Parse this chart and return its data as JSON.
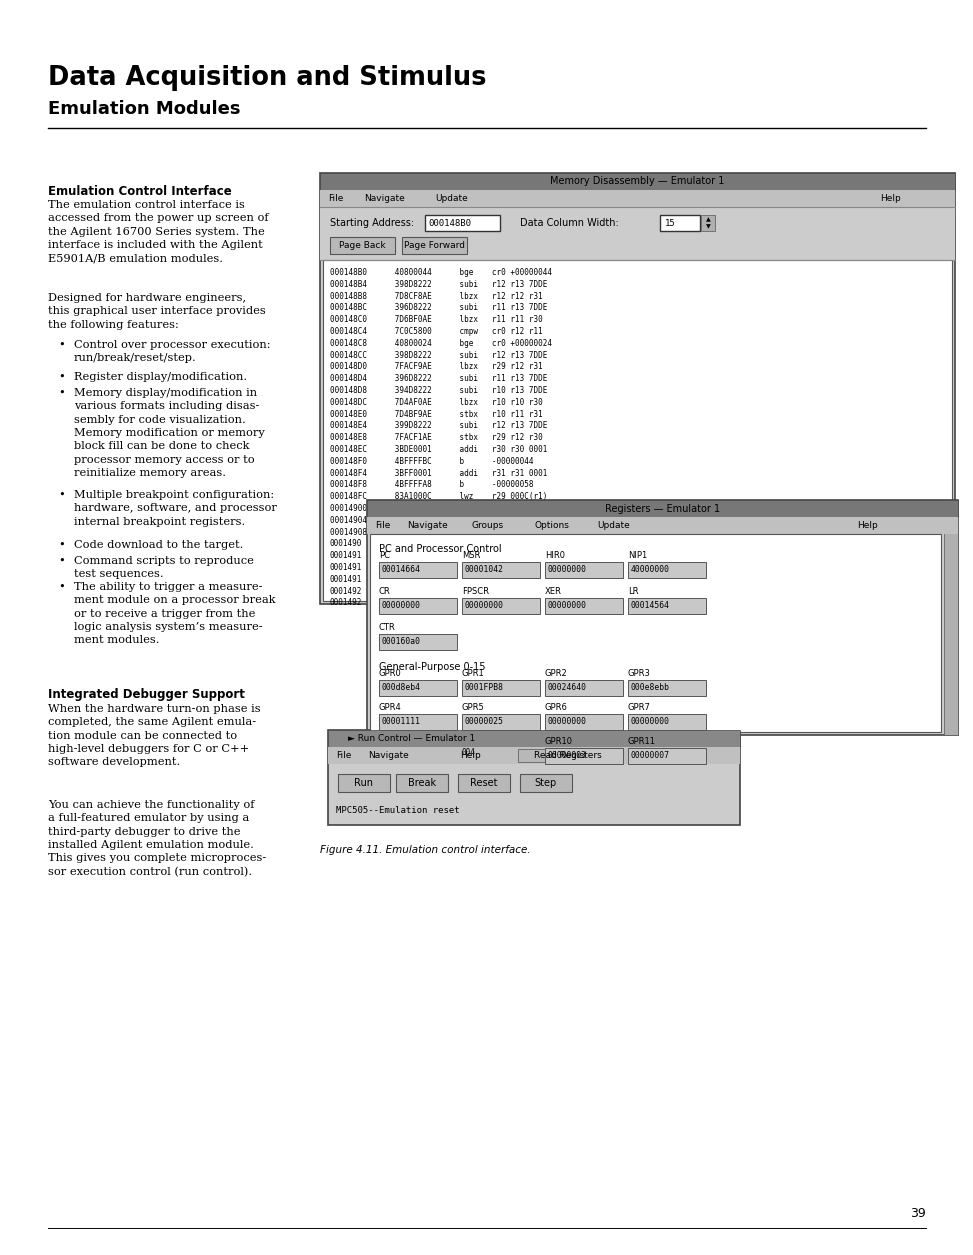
{
  "title_line1": "Data Acquisition and Stimulus",
  "title_line2": "Emulation Modules",
  "bg_color": "#ffffff",
  "section1_heading": "Emulation Control Interface",
  "section2_heading": "Integrated Debugger Support",
  "fig_caption": "Figure 4.11. Emulation control interface.",
  "page_number": "39",
  "body1": "The emulation control interface is\naccessed from the power up screen of\nthe Agilent 16700 Series system. The\ninterface is included with the Agilent\nE5901A/B emulation modules.",
  "body2": "Designed for hardware engineers,\nthis graphical user interface provides\nthe following features:",
  "bullets": [
    "Control over processor execution:\nrun/break/reset/step.",
    "Register display/modification.",
    "Memory display/modification in\nvarious formats including disas-\nsembly for code visualization.\nMemory modification or memory\nblock fill can be done to check\nprocessor memory access or to\nreinitialize memory areas.",
    "Multiple breakpoint configuration:\nhardware, software, and processor\ninternal breakpoint registers.",
    "Code download to the target.",
    "Command scripts to reproduce\ntest sequences.",
    "The ability to trigger a measure-\nment module on a processor break\nor to receive a trigger from the\nlogic analysis system’s measure-\nment modules."
  ],
  "body3": "When the hardware turn-on phase is\ncompleted, the same Agilent emula-\ntion module can be connected to\nhigh-level debuggers for C or C++\nsoftware development.",
  "body4": "You can achieve the functionality of\na full-featured emulator by using a\nthird-party debugger to drive the\ninstalled Agilent emulation module.\nThis gives you complete microproces-\nsor execution control (run control).",
  "code_lines": [
    "000148B0      40800044      bge    cr0 +00000044",
    "000148B4      398D8222      subi   r12 r13 7DDE",
    "000148B8      7D8CF8AE      lbzx   r12 r12 r31",
    "000148BC      396D8222      subi   r11 r13 7DDE",
    "000148C0      7D6BF0AE      lbzx   r11 r11 r30",
    "000148C4      7C0C5800      cmpw   cr0 r12 r11",
    "000148C8      40800024      bge    cr0 +00000024",
    "000148CC      398D8222      subi   r12 r13 7DDE",
    "000148D0      7FACF9AE      lbzx   r29 r12 r31",
    "000148D4      396D8222      subi   r11 r13 7DDE",
    "000148D8      394D8222      subi   r10 r13 7DDE",
    "000148DC      7D4AF0AE      lbzx   r10 r10 r30",
    "000148E0      7D4BF9AE      stbx   r10 r11 r31",
    "000148E4      399D8222      subi   r12 r13 7DDE",
    "000148E8      7FACF1AE      stbx   r29 r12 r30",
    "000148EC      3BDE0001      addi   r30 r30 0001",
    "000148F0      4BFFFFBC      b      -00000044",
    "000148F4      3BFF0001      addi   r31 r31 0001",
    "000148F8      4BFFFFA8      b      -00000058",
    "000148FC      83A1000C      lwz    r29 000C(r1)",
    "00014900      83C10010      lwz    r30 0010(r1)",
    "00014904      83E10014      lwz    r31 0014(r1)",
    "00014908      8001001C      lwz    r0  001C(r12)"
  ],
  "extra_lines": [
    "0001490",
    "0001491",
    "0001491",
    "0001491",
    "0001492",
    "0001492",
    "0001492"
  ]
}
